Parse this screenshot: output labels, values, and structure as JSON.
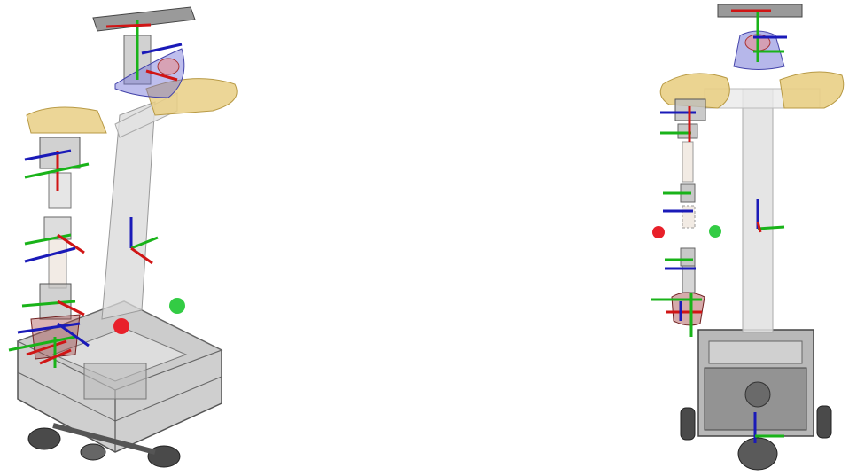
{
  "views": [
    {
      "id": "left",
      "kind": "perspective-view",
      "targets": [
        {
          "name": "red-target-marker",
          "color": "#e8202a"
        },
        {
          "name": "green-target-marker",
          "color": "#33cc44"
        }
      ]
    },
    {
      "id": "right",
      "kind": "front-view",
      "targets": [
        {
          "name": "red-target-marker",
          "color": "#e8202a"
        },
        {
          "name": "green-target-marker",
          "color": "#33cc44"
        }
      ]
    }
  ],
  "colors": {
    "axis_x": "#d01515",
    "axis_y": "#19b319",
    "axis_z": "#1a1ab8",
    "shoulder_pad": "#e9cf85",
    "shoulder_pad_edge": "#b89a45",
    "mast": "#d8d8d8",
    "base_frame": "#6e6e6e",
    "base_fill": "#9a9a9a",
    "camera_dome": "#6e6fd6",
    "wheel": "#4a4a4a"
  }
}
